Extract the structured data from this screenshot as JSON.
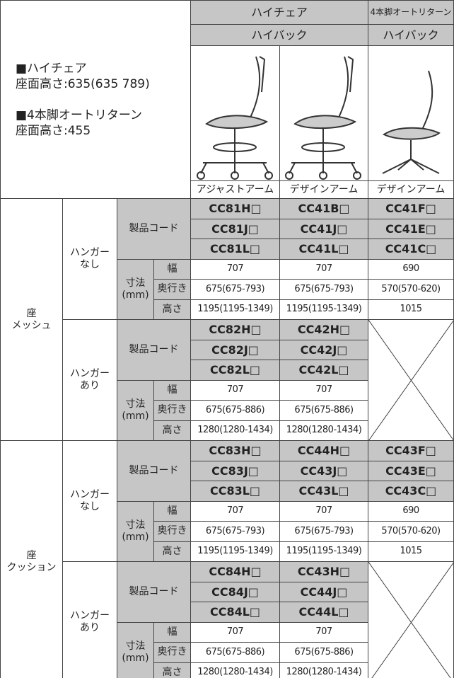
{
  "header": {
    "left": {
      "series1_label": "■ハイチェア",
      "series1_height": "座面高さ:635(635 789)",
      "series2_label": "■4本脚オートリターン",
      "series2_height": "座面高さ:455"
    },
    "groups": [
      "ハイチェア",
      "4本脚オートリターン"
    ],
    "backs": [
      "ハイバック",
      "ハイバック"
    ],
    "arms": [
      "アジャストアーム",
      "デザインアーム",
      "デザインアーム"
    ]
  },
  "labels": {
    "code": "製品コード",
    "size": "寸法",
    "unit": "(mm)",
    "width": "幅",
    "depth": "奥行き",
    "height": "高さ"
  },
  "sections": [
    {
      "seat": [
        "座",
        "メッシュ"
      ],
      "blocks": [
        {
          "hanger": [
            "ハンガー",
            "なし"
          ],
          "codes": [
            [
              "CC81H□",
              "CC41B□",
              "CC41F□"
            ],
            [
              "CC81J□",
              "CC41J□",
              "CC41E□"
            ],
            [
              "CC81L□",
              "CC41L□",
              "CC41C□"
            ]
          ],
          "width": [
            707,
            707,
            690
          ],
          "depth": [
            "675(675-793)",
            "675(675-793)",
            "570(570-620)"
          ],
          "height": [
            "1195(1195-1349)",
            "1195(1195-1349)",
            1015
          ]
        },
        {
          "hanger": [
            "ハンガー",
            "あり"
          ],
          "codes": [
            [
              "CC82H□",
              "CC42H□",
              null
            ],
            [
              "CC82J□",
              "CC42J□",
              null
            ],
            [
              "CC82L□",
              "CC42L□",
              null
            ]
          ],
          "width": [
            707,
            707,
            null
          ],
          "depth": [
            "675(675-886)",
            "675(675-886)",
            null
          ],
          "height": [
            "1280(1280-1434)",
            "1280(1280-1434)",
            null
          ]
        }
      ]
    },
    {
      "seat": [
        "座",
        "クッション"
      ],
      "blocks": [
        {
          "hanger": [
            "ハンガー",
            "なし"
          ],
          "codes": [
            [
              "CC83H□",
              "CC44H□",
              "CC43F□"
            ],
            [
              "CC83J□",
              "CC43J□",
              "CC43E□"
            ],
            [
              "CC83L□",
              "CC43L□",
              "CC43C□"
            ]
          ],
          "width": [
            707,
            707,
            690
          ],
          "depth": [
            "675(675-793)",
            "675(675-793)",
            "570(570-620)"
          ],
          "height": [
            "1195(1195-1349)",
            "1195(1195-1349)",
            1015
          ]
        },
        {
          "hanger": [
            "ハンガー",
            "あり"
          ],
          "codes": [
            [
              "CC84H□",
              "CC43H□",
              null
            ],
            [
              "CC84J□",
              "CC44J□",
              null
            ],
            [
              "CC84L□",
              "CC44L□",
              null
            ]
          ],
          "width": [
            707,
            707,
            null
          ],
          "depth": [
            "675(675-886)",
            "675(675-886)",
            null
          ],
          "height": [
            "1280(1280-1434)",
            "1280(1280-1434)",
            null
          ]
        }
      ]
    }
  ]
}
